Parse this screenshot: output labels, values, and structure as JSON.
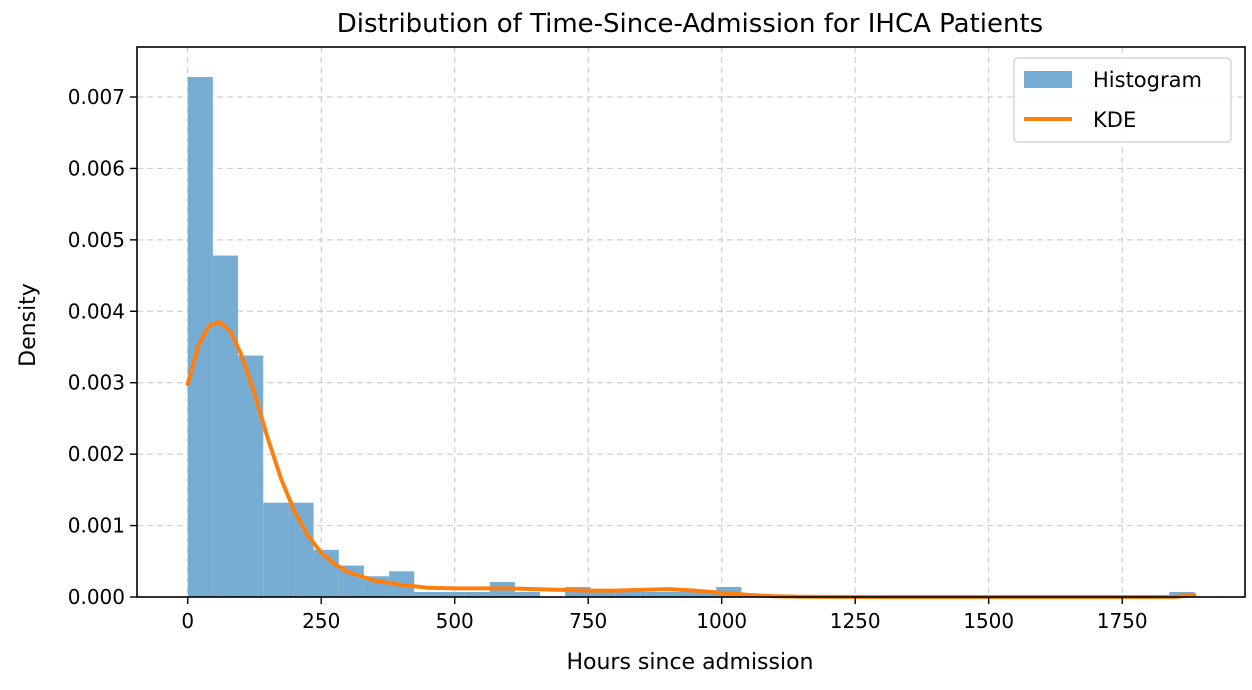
{
  "chart_data": {
    "type": "bar",
    "title": "Distribution of Time-Since-Admission for IHCA Patients",
    "xlabel": "Hours since admission",
    "ylabel": "Density",
    "xlim": [
      -95,
      1980
    ],
    "ylim": [
      0,
      0.0077
    ],
    "xticks": [
      0,
      250,
      500,
      750,
      1000,
      1250,
      1500,
      1750
    ],
    "xtick_labels": [
      "0",
      "250",
      "500",
      "750",
      "1000",
      "1250",
      "1500",
      "1750"
    ],
    "yticks": [
      0.0,
      0.001,
      0.002,
      0.003,
      0.004,
      0.005,
      0.006,
      0.007
    ],
    "ytick_labels": [
      "0.000",
      "0.001",
      "0.002",
      "0.003",
      "0.004",
      "0.005",
      "0.006",
      "0.007"
    ],
    "grid": true,
    "legend_position": "top-right",
    "histogram": {
      "name": "Histogram",
      "color": "#77acd3",
      "bin_edges": [
        0,
        47.1,
        94.3,
        141.4,
        188.5,
        235.7,
        282.8,
        329.9,
        377.1,
        424.2,
        471.3,
        518.5,
        565.6,
        612.7,
        659.9,
        707.0,
        754.1,
        801.3,
        848.4,
        895.5,
        942.7,
        989.8,
        1037.0,
        1084.1,
        1131.2,
        1178.4,
        1225.5,
        1272.6,
        1319.8,
        1366.9,
        1414.0,
        1461.2,
        1508.3,
        1555.4,
        1602.6,
        1649.7,
        1696.8,
        1744.0,
        1791.1,
        1838.2,
        1885.4
      ],
      "values": [
        0.00728,
        0.00478,
        0.00338,
        0.00132,
        0.00132,
        0.00066,
        0.00044,
        0.00029,
        0.00036,
        7e-05,
        7e-05,
        7e-05,
        0.00021,
        7e-05,
        0.0,
        0.00014,
        7e-05,
        7e-05,
        7e-05,
        7e-05,
        7e-05,
        0.00014,
        0.0,
        0.0,
        0.0,
        0.0,
        0.0,
        0.0,
        0.0,
        0.0,
        0.0,
        0.0,
        0.0,
        0.0,
        0.0,
        0.0,
        0.0,
        0.0,
        0.0,
        7e-05
      ]
    },
    "kde": {
      "name": "KDE",
      "color": "#ff7f0e",
      "x": [
        0,
        20,
        40,
        60,
        80,
        100,
        125,
        150,
        175,
        200,
        225,
        250,
        275,
        300,
        350,
        400,
        450,
        500,
        550,
        600,
        650,
        700,
        750,
        800,
        850,
        900,
        950,
        1000,
        1050,
        1100,
        1150,
        1200,
        1300,
        1400,
        1500,
        1600,
        1700,
        1800,
        1850,
        1885
      ],
      "y": [
        0.00298,
        0.00352,
        0.0038,
        0.00385,
        0.00372,
        0.0034,
        0.00285,
        0.00222,
        0.00165,
        0.0012,
        0.00086,
        0.00062,
        0.00046,
        0.00035,
        0.00023,
        0.00017,
        0.00013,
        0.00012,
        0.00012,
        0.00012,
        0.00011,
        0.0001,
        9e-05,
        9e-05,
        0.0001,
        0.00011,
        9e-05,
        6e-05,
        3e-05,
        1e-05,
        3e-06,
        1e-06,
        0.0,
        0.0,
        0.0,
        0.0,
        0.0,
        0.0,
        2e-06,
        3e-05
      ]
    }
  }
}
